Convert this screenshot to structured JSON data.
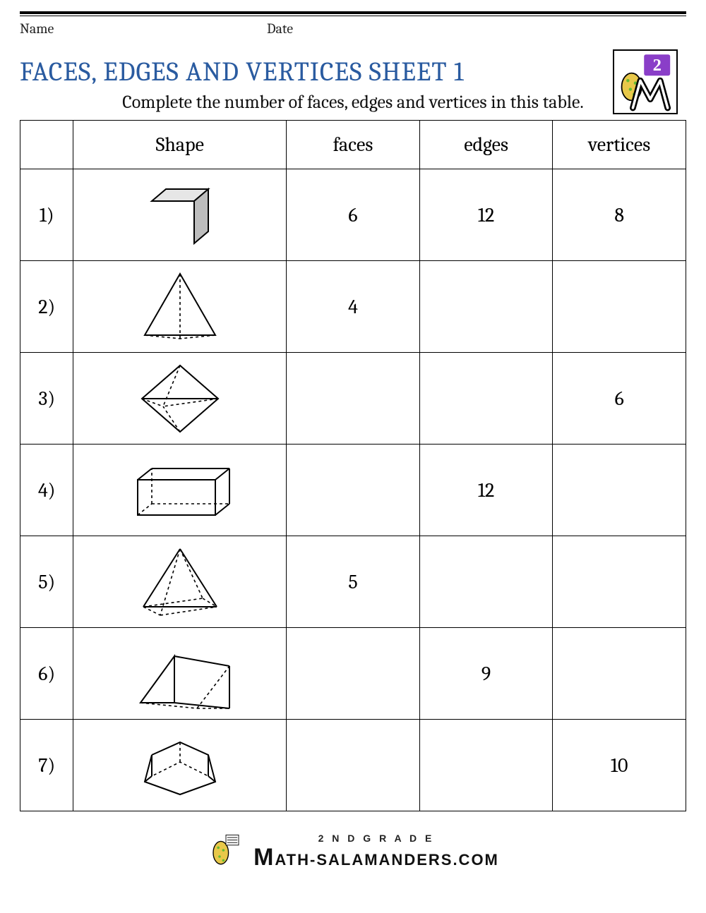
{
  "meta": {
    "name_label": "Name",
    "date_label": "Date"
  },
  "title": "FACES, EDGES AND VERTICES SHEET 1",
  "instruction": "Complete the number of faces, edges and vertices in this table.",
  "headers": {
    "num": "",
    "shape": "Shape",
    "faces": "faces",
    "edges": "edges",
    "vertices": "vertices"
  },
  "rows": [
    {
      "num": "1)",
      "shape": "cube",
      "faces": "6",
      "edges": "12",
      "vertices": "8"
    },
    {
      "num": "2)",
      "shape": "tetrahedron",
      "faces": "4",
      "edges": "",
      "vertices": ""
    },
    {
      "num": "3)",
      "shape": "octahedron",
      "faces": "",
      "edges": "",
      "vertices": "6"
    },
    {
      "num": "4)",
      "shape": "rectangular-prism",
      "faces": "",
      "edges": "12",
      "vertices": ""
    },
    {
      "num": "5)",
      "shape": "square-pyramid",
      "faces": "5",
      "edges": "",
      "vertices": ""
    },
    {
      "num": "6)",
      "shape": "triangular-prism",
      "faces": "",
      "edges": "9",
      "vertices": ""
    },
    {
      "num": "7)",
      "shape": "pentagonal-prism",
      "faces": "",
      "edges": "",
      "vertices": "10"
    }
  ],
  "logo": {
    "badge_number": "2",
    "badge_bg": "#8a3ec8",
    "badge_fg": "#ffffff"
  },
  "footer": {
    "grade": "2 N D  G R A D E",
    "brand_big": "M",
    "brand_rest": "ATH-SALAMANDERS.COM"
  },
  "colors": {
    "title": "#2a5ba0",
    "border": "#000000",
    "text": "#000000",
    "bg": "#ffffff"
  }
}
